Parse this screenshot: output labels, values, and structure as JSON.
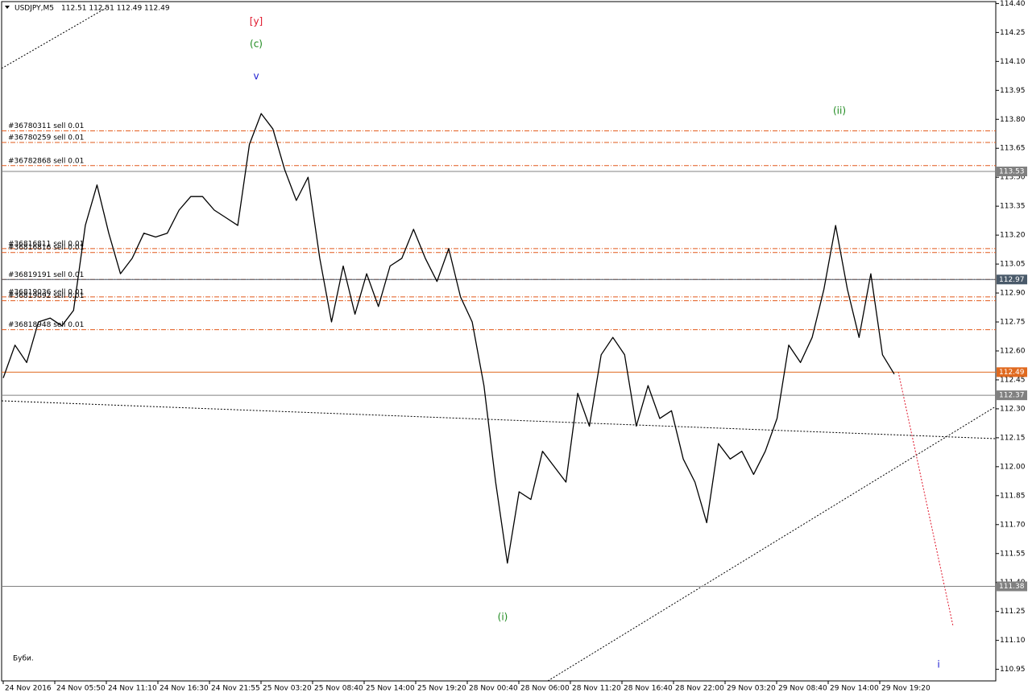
{
  "chart_data": {
    "type": "line",
    "title": "USDJPY,M5",
    "subtitle": "112.51 112.51 112.49 112.49",
    "note": "Буби.",
    "color": "#000000",
    "values": [
      112.46,
      112.63,
      112.54,
      112.75,
      112.77,
      112.73,
      112.81,
      113.25,
      113.46,
      113.21,
      113.0,
      113.08,
      113.21,
      113.19,
      113.21,
      113.33,
      113.4,
      113.4,
      113.33,
      113.29,
      113.25,
      113.67,
      113.83,
      113.75,
      113.54,
      113.38,
      113.5,
      113.08,
      112.75,
      113.04,
      112.79,
      113.0,
      112.83,
      113.04,
      113.08,
      113.23,
      113.08,
      112.96,
      113.13,
      112.88,
      112.75,
      112.42,
      111.92,
      111.5,
      111.87,
      111.83,
      112.08,
      112.0,
      111.92,
      112.38,
      112.21,
      112.58,
      112.67,
      112.58,
      112.21,
      112.42,
      112.25,
      112.29,
      112.04,
      111.92,
      111.71,
      112.12,
      112.04,
      112.08,
      111.96,
      112.08,
      112.25,
      112.63,
      112.54,
      112.67,
      112.92,
      113.25,
      112.92,
      112.67,
      113.0,
      112.58,
      112.48
    ],
    "ylim": [
      110.89,
      114.41
    ],
    "yticks": [
      {
        "value": 114.4,
        "label": "114.40"
      },
      {
        "value": 114.25,
        "label": "114.25"
      },
      {
        "value": 114.1,
        "label": "114.10"
      },
      {
        "value": 113.95,
        "label": "113.95"
      },
      {
        "value": 113.8,
        "label": "113.80"
      },
      {
        "value": 113.65,
        "label": "113.65"
      },
      {
        "value": 113.5,
        "label": "113.50"
      },
      {
        "value": 113.35,
        "label": "113.35"
      },
      {
        "value": 113.2,
        "label": "113.20"
      },
      {
        "value": 113.05,
        "label": "113.05"
      },
      {
        "value": 112.9,
        "label": "112.90"
      },
      {
        "value": 112.75,
        "label": "112.75"
      },
      {
        "value": 112.6,
        "label": "112.60"
      },
      {
        "value": 112.45,
        "label": "112.45"
      },
      {
        "value": 112.3,
        "label": "112.30"
      },
      {
        "value": 112.15,
        "label": "112.15"
      },
      {
        "value": 112.0,
        "label": "112.00"
      },
      {
        "value": 111.85,
        "label": "111.85"
      },
      {
        "value": 111.7,
        "label": "111.70"
      },
      {
        "value": 111.55,
        "label": "111.55"
      },
      {
        "value": 111.4,
        "label": "111.40"
      },
      {
        "value": 111.25,
        "label": "111.25"
      },
      {
        "value": 111.1,
        "label": "111.10"
      },
      {
        "value": 110.95,
        "label": "110.95"
      }
    ],
    "xtick_labels": [
      "24 Nov 2016",
      "24 Nov 05:50",
      "24 Nov 11:10",
      "24 Nov 16:30",
      "24 Nov 21:55",
      "25 Nov 03:20",
      "25 Nov 08:40",
      "25 Nov 14:00",
      "25 Nov 19:20",
      "28 Nov 00:40",
      "28 Nov 06:00",
      "28 Nov 11:20",
      "28 Nov 16:40",
      "28 Nov 22:00",
      "29 Nov 03:20",
      "29 Nov 08:40",
      "29 Nov 14:00",
      "29 Nov 19:20"
    ],
    "levels": [
      {
        "value": 113.53,
        "color": "#808080"
      },
      {
        "value": 112.97,
        "color": "#4a5a6a"
      },
      {
        "value": 112.49,
        "color": "#e06a20"
      },
      {
        "value": 112.37,
        "color": "#808080"
      },
      {
        "value": 111.38,
        "color": "#808080"
      }
    ],
    "orders": [
      {
        "label": "#36780311 sell 0.01",
        "price": 113.74
      },
      {
        "label": "#36780259 sell 0.01",
        "price": 113.68
      },
      {
        "label": "#36782868 sell 0.01",
        "price": 113.56
      },
      {
        "label": "#36816811 sell 0.01",
        "price": 113.13
      },
      {
        "label": "#36816816 sell 0.01",
        "price": 113.11
      },
      {
        "label": "#36819191 sell 0.01",
        "price": 112.97
      },
      {
        "label": "#36819036 sell 0.01",
        "price": 112.88
      },
      {
        "label": "#36819092 sell 0.01",
        "price": 112.86
      },
      {
        "label": "#36818948 sell 0.01",
        "price": 112.71
      }
    ],
    "order_color": "#e2591b",
    "annotations": [
      {
        "text": "[y]",
        "color": "#e0162b"
      },
      {
        "text": "(c)",
        "color": "#1e8a1e"
      },
      {
        "text": "v",
        "color": "#1a1ad0"
      },
      {
        "text": "(ii)",
        "color": "#1e8a1e"
      },
      {
        "text": "(i)",
        "color": "#1e8a1e"
      },
      {
        "text": "i",
        "color": "#1a1ad0"
      }
    ]
  }
}
